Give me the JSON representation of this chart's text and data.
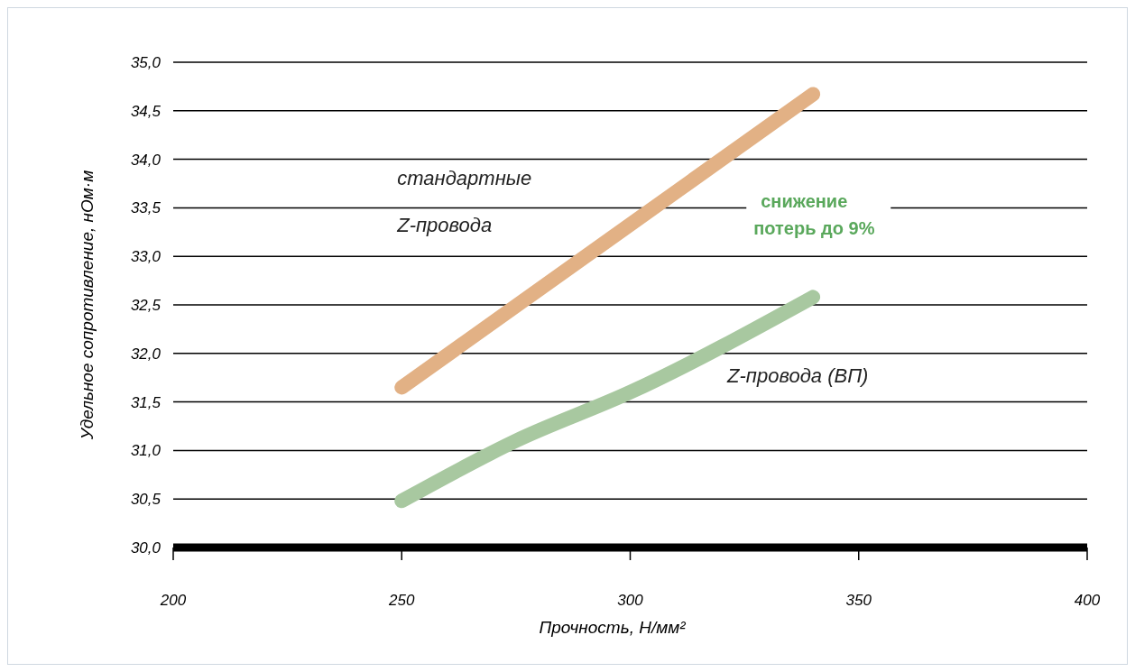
{
  "chart_data": {
    "type": "line",
    "xlabel": "Прочность, Н/мм²",
    "ylabel": "Удельное сопротивление, нОм·м",
    "xlim": [
      200,
      400
    ],
    "xticks": [
      200,
      250,
      300,
      350,
      400
    ],
    "ylim": [
      30,
      35
    ],
    "yticks": [
      {
        "value": 30,
        "label": "30,0"
      },
      {
        "value": 30.5,
        "label": "30,5"
      },
      {
        "value": 31,
        "label": "31,0"
      },
      {
        "value": 31.5,
        "label": "31,5"
      },
      {
        "value": 32,
        "label": "32,0"
      },
      {
        "value": 32.5,
        "label": "32,5"
      },
      {
        "value": 33,
        "label": "33,0"
      },
      {
        "value": 33.5,
        "label": "33,5"
      },
      {
        "value": 34,
        "label": "34,0"
      },
      {
        "value": 34.5,
        "label": "34,5"
      },
      {
        "value": 35,
        "label": "35,0"
      }
    ],
    "grid": "y",
    "line_style": "solid",
    "series": [
      {
        "name": "стандартные Z-провода",
        "color": "#e2b185",
        "x": [
          250,
          340
        ],
        "values": [
          31.65,
          34.67
        ]
      },
      {
        "name": "Z-провода (ВП)",
        "color": "#a8c8a0",
        "x": [
          250,
          275,
          300,
          340
        ],
        "values": [
          30.48,
          31.1,
          31.6,
          32.58
        ]
      }
    ],
    "annotations": [
      "снижение потерь до 9%"
    ]
  }
}
